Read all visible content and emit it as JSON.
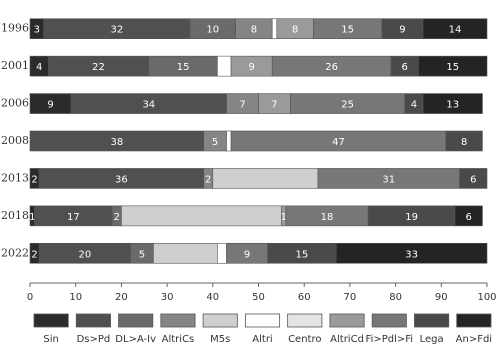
{
  "chart_data": {
    "type": "stacked-barh",
    "categories": [
      "1996",
      "2001",
      "2006",
      "2008",
      "2013",
      "2018",
      "2022"
    ],
    "series": [
      {
        "name": "Sin",
        "color": "#2b2b2b",
        "values": [
          3,
          4,
          9,
          0,
          2,
          1,
          2
        ],
        "value_labels": [
          "3",
          "4",
          "9",
          null,
          "2",
          "1",
          "2"
        ]
      },
      {
        "name": "Ds>Pd",
        "color": "#505050",
        "values": [
          32,
          22,
          34,
          38,
          36,
          17,
          20
        ],
        "value_labels": [
          "32",
          "22",
          "34",
          "38",
          "36",
          "17",
          "20"
        ]
      },
      {
        "name": "DL>A-Iv",
        "color": "#6a6a6a",
        "values": [
          10,
          15,
          0,
          0,
          0,
          2,
          5
        ],
        "value_labels": [
          "10",
          "15",
          null,
          null,
          null,
          "2",
          "5"
        ]
      },
      {
        "name": "AltriCs",
        "color": "#858585",
        "values": [
          8,
          0,
          7,
          5,
          2,
          0,
          0
        ],
        "value_labels": [
          "8",
          null,
          "7",
          "5",
          "2",
          null,
          null
        ]
      },
      {
        "name": "M5s",
        "color": "#cfcfcf",
        "values": [
          0,
          0,
          0,
          0,
          23,
          35,
          14
        ],
        "value_labels": [
          null,
          null,
          null,
          null,
          null,
          null,
          null
        ]
      },
      {
        "name": "Altri",
        "color": "#ffffff",
        "values": [
          1,
          3,
          0,
          1,
          0,
          0,
          2
        ],
        "value_labels": [
          null,
          null,
          null,
          null,
          null,
          null,
          null
        ]
      },
      {
        "name": "Centro",
        "color": "#e4e4e4",
        "values": [
          0,
          0,
          0,
          0,
          0,
          0,
          0
        ],
        "value_labels": [
          null,
          null,
          null,
          null,
          null,
          null,
          null
        ]
      },
      {
        "name": "AltriCd",
        "color": "#9a9a9a",
        "values": [
          8,
          9,
          7,
          0,
          0,
          1,
          0
        ],
        "value_labels": [
          "8",
          "9",
          "7",
          null,
          null,
          "1",
          null
        ]
      },
      {
        "name": "Fi>Pdl>Fi",
        "color": "#777777",
        "values": [
          15,
          26,
          25,
          47,
          31,
          18,
          9
        ],
        "value_labels": [
          "15",
          "26",
          "25",
          "47",
          "31",
          "18",
          "9"
        ]
      },
      {
        "name": "Lega",
        "color": "#4a4a4a",
        "values": [
          9,
          6,
          4,
          8,
          6,
          19,
          15
        ],
        "value_labels": [
          "9",
          "6",
          "4",
          "8",
          "6",
          "19",
          "15"
        ]
      },
      {
        "name": "An>Fdi",
        "color": "#242424",
        "values": [
          14,
          15,
          13,
          0,
          0,
          6,
          33
        ],
        "value_labels": [
          "14",
          "15",
          "13",
          null,
          null,
          "6",
          "33"
        ]
      }
    ],
    "xlim": [
      0,
      100
    ],
    "xticks": [
      0,
      10,
      20,
      30,
      40,
      50,
      60,
      70,
      80,
      90,
      100
    ]
  }
}
